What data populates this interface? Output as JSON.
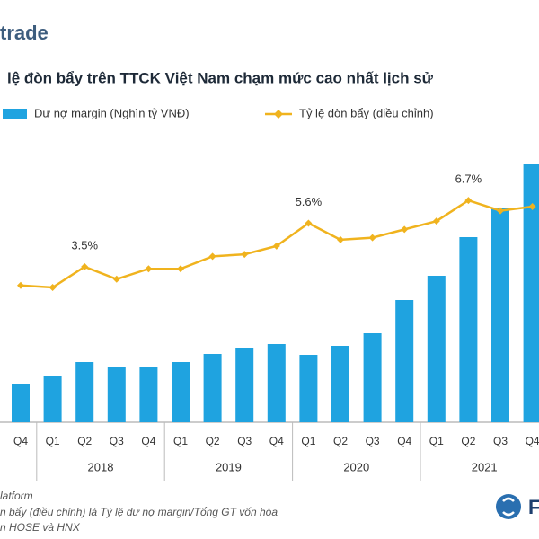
{
  "logo": "trade",
  "chart_data": {
    "type": "bar-line",
    "title": "lệ đòn bẩy trên TTCK Việt Nam chạm mức cao nhất lịch sử",
    "categories": [
      "Q4",
      "Q1",
      "Q2",
      "Q3",
      "Q4",
      "Q1",
      "Q2",
      "Q3",
      "Q4",
      "Q1",
      "Q2",
      "Q3",
      "Q4",
      "Q1",
      "Q2",
      "Q3",
      "Q4"
    ],
    "years": [
      "2018",
      "2019",
      "2020",
      "2021"
    ],
    "ylim": [
      0,
      300
    ],
    "y2lim": [
      -4,
      9
    ],
    "series": [
      {
        "name": "Dư nợ margin (Nghìn tỷ VNĐ)",
        "color": "#1fa3e0",
        "values": [
          43,
          51,
          67,
          61,
          62,
          67,
          76,
          83,
          87,
          75,
          85,
          99,
          136,
          163,
          206,
          239,
          287
        ]
      },
      {
        "name": "Tỷ lệ đòn bẩy (điều chỉnh)",
        "color": "#f0b31e",
        "axis": "y2",
        "values": [
          2.6,
          2.5,
          3.5,
          2.9,
          3.4,
          3.4,
          4.0,
          4.1,
          4.5,
          5.6,
          4.8,
          4.9,
          5.3,
          5.7,
          6.7,
          6.2,
          6.4
        ],
        "value_labels": [
          null,
          null,
          "3.5%",
          null,
          null,
          null,
          null,
          null,
          null,
          "5.6%",
          null,
          null,
          null,
          null,
          "6.7%",
          null,
          null
        ]
      }
    ]
  },
  "footer": [
    "latform",
    "n bẩy (điều chỉnh) là Tỷ lệ dư nợ margin/Tổng GT vốn hóa",
    "n HOSE và HNX"
  ],
  "brand": "F"
}
